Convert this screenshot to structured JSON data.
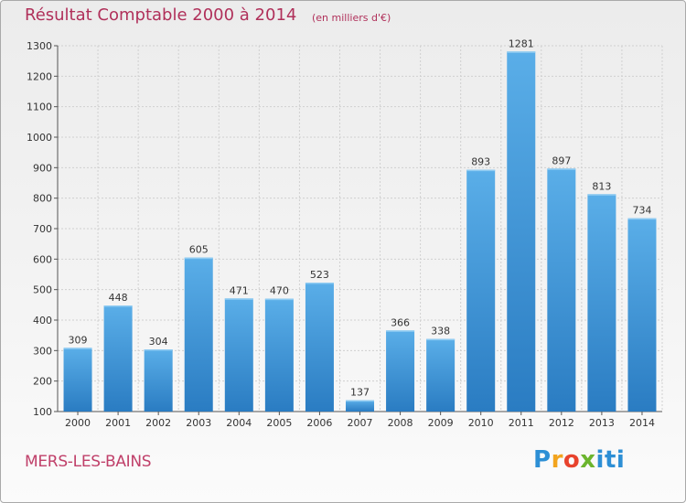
{
  "header": {
    "title": "Résultat Comptable 2000 à 2014",
    "unit": "(en milliers d'€)"
  },
  "footer": {
    "commune": "MERS-LES-BAINS",
    "logo": "Proxiti"
  },
  "colors": {
    "title": "#b0305a",
    "bar_top": "#5aaee8",
    "bar_bottom": "#2a7cc2",
    "grid": "#d0d0d0"
  },
  "chart_data": {
    "type": "bar",
    "title": "Résultat Comptable 2000 à 2014",
    "xlabel": "",
    "ylabel": "",
    "categories": [
      "2000",
      "2001",
      "2002",
      "2003",
      "2004",
      "2005",
      "2006",
      "2007",
      "2008",
      "2009",
      "2010",
      "2011",
      "2012",
      "2013",
      "2014"
    ],
    "values": [
      309,
      448,
      304,
      605,
      471,
      470,
      523,
      137,
      366,
      338,
      893,
      1281,
      897,
      813,
      734
    ],
    "ylim": [
      100,
      1300
    ],
    "yticks": [
      100,
      200,
      300,
      400,
      500,
      600,
      700,
      800,
      900,
      1000,
      1100,
      1200,
      1300
    ],
    "grid": true,
    "data_labels": true
  }
}
